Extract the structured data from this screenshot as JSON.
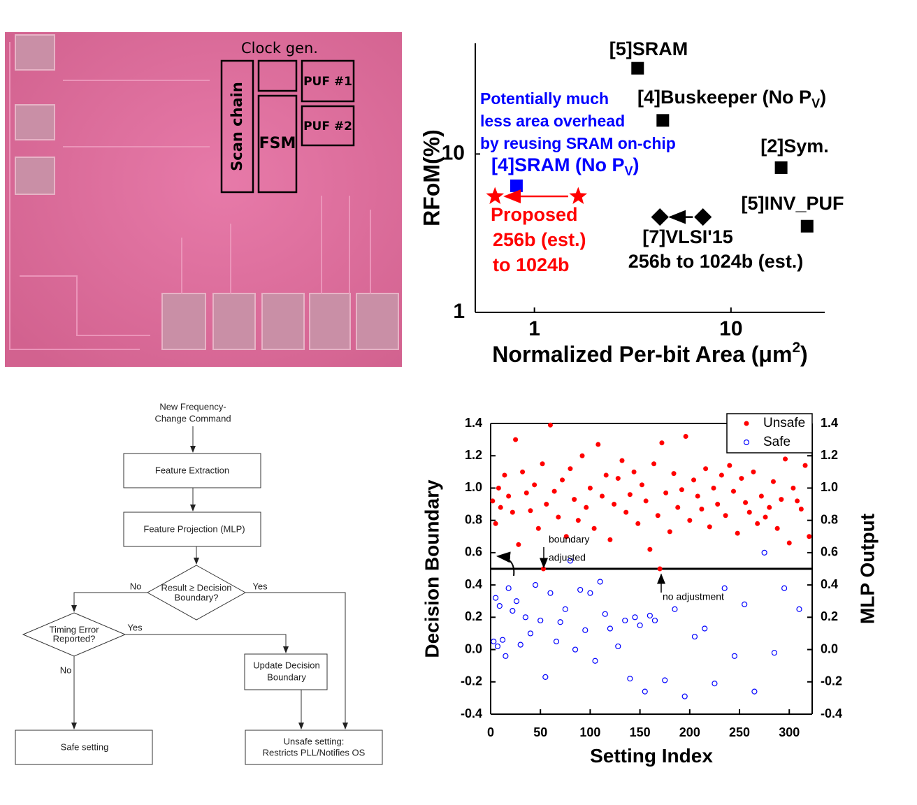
{
  "die_photo": {
    "labels": {
      "clock_gen": "Clock gen.",
      "scan_chain": "Scan chain",
      "fsm": "FSM",
      "puf_1": "PUF #1",
      "puf_2": "PUF #2"
    }
  },
  "chart_data": [
    {
      "type": "scatter",
      "xscale": "log",
      "yscale": "log",
      "x_label": "Normalized Per-bit Area  (μm",
      "x_label_sup": "2",
      "x_label_end": ")",
      "y_label": "RFoM(%)",
      "xlim": [
        0.5,
        30
      ],
      "ylim": [
        1,
        50
      ],
      "xticks": [
        1,
        10
      ],
      "yticks": [
        1,
        10
      ],
      "series": [
        {
          "name": "[5]SRAM",
          "color": "#000000",
          "marker": "square",
          "x": [
            3.35
          ],
          "values": [
            34.8
          ]
        },
        {
          "name": "[4]Buskeeper (No P",
          "name_sub": "V",
          "name_end": ")",
          "color": "#000000",
          "marker": "square",
          "x": [
            4.5
          ],
          "values": [
            16.3
          ]
        },
        {
          "name": "[2]Sym.",
          "color": "#000000",
          "marker": "square",
          "x": [
            18
          ],
          "values": [
            8.2
          ]
        },
        {
          "name": "[5]INV_PUF",
          "color": "#000000",
          "marker": "square",
          "x": [
            24.4
          ],
          "values": [
            3.5
          ]
        },
        {
          "name": "[4]SRAM (No P",
          "name_sub": "V",
          "name_end": ")",
          "color": "#0000ff",
          "marker": "square",
          "x": [
            0.81
          ],
          "values": [
            6.3
          ]
        },
        {
          "name": "Proposed",
          "name_lines": [
            "256b (est.)",
            "to 1024b"
          ],
          "color": "#ff0000",
          "marker": "star",
          "x": [
            0.63,
            1.67
          ],
          "values": [
            5.4,
            5.4
          ]
        },
        {
          "name": "[7]VLSI'15",
          "name_lines": [
            "256b to 1024b (est.)"
          ],
          "color": "#000000",
          "marker": "diamond",
          "x": [
            4.35,
            7.2
          ],
          "values": [
            4.0,
            4.0
          ]
        }
      ],
      "annotation_lines": [
        "Potentially much",
        "less area overhead",
        "by reusing SRAM on-chip"
      ],
      "annotation_color": "#0000ff"
    },
    {
      "type": "scatter",
      "x_label": "Setting Index",
      "y_label": "Decision Boundary",
      "y2_label": "MLP Output",
      "xlim": [
        0,
        323
      ],
      "ylim": [
        -0.4,
        1.4
      ],
      "y2lim": [
        -0.4,
        1.4
      ],
      "xticks": [
        0,
        50,
        100,
        150,
        200,
        250,
        300
      ],
      "yticks": [
        1.4,
        1.2,
        {
          "value": 1,
          "label": "1.0"
        },
        0.8,
        0.6,
        0.4,
        0.2,
        {
          "value": 0,
          "label": "0.0"
        },
        -0.2,
        -0.4
      ],
      "y2ticks": [
        1.4,
        1.2,
        {
          "value": 1,
          "label": "1.0"
        },
        0.8,
        0.6,
        0.4,
        0.2,
        {
          "value": 0,
          "label": "0.0"
        },
        -0.2,
        -0.4
      ],
      "legend": "upper right",
      "threshold": 0.5,
      "annotations": [
        "boundary",
        "adjusted",
        "no adjustment"
      ],
      "series": [
        {
          "name": "Unsafe",
          "color": "#ff0000",
          "marker": "circle",
          "x": [
            2,
            5,
            8,
            10,
            14,
            18,
            22,
            25,
            28,
            32,
            36,
            40,
            44,
            48,
            52,
            56,
            60,
            64,
            68,
            72,
            76,
            80,
            84,
            88,
            92,
            96,
            100,
            104,
            108,
            112,
            116,
            120,
            124,
            128,
            132,
            136,
            140,
            144,
            148,
            152,
            156,
            160,
            164,
            168,
            172,
            176,
            180,
            184,
            188,
            192,
            196,
            200,
            204,
            208,
            212,
            216,
            220,
            224,
            228,
            232,
            236,
            240,
            244,
            248,
            252,
            256,
            260,
            264,
            268,
            272,
            276,
            280,
            284,
            288,
            292,
            296,
            300,
            304,
            308,
            312,
            316,
            320,
            53,
            170
          ],
          "values": [
            0.92,
            0.78,
            1.0,
            0.88,
            1.08,
            0.95,
            0.85,
            1.3,
            0.65,
            1.1,
            0.97,
            0.86,
            1.02,
            0.75,
            1.15,
            0.9,
            1.39,
            0.98,
            0.82,
            1.05,
            0.7,
            1.12,
            0.93,
            0.8,
            1.2,
            0.88,
            1.0,
            0.75,
            1.27,
            0.95,
            1.08,
            0.68,
            0.9,
            1.06,
            1.17,
            0.85,
            0.96,
            1.1,
            0.78,
            1.02,
            0.92,
            0.62,
            1.15,
            0.83,
            1.28,
            0.97,
            0.73,
            1.09,
            0.88,
            0.99,
            1.32,
            0.8,
            1.05,
            0.95,
            0.87,
            1.12,
            0.76,
            1.0,
            0.9,
            1.08,
            0.83,
            1.14,
            0.98,
            0.72,
            1.06,
            0.91,
            0.85,
            1.1,
            0.78,
            0.95,
            0.82,
            0.88,
            1.04,
            0.75,
            0.93,
            1.18,
            0.66,
            1.0,
            0.92,
            0.87,
            1.14,
            0.7,
            0.5,
            0.5
          ]
        },
        {
          "name": "Safe",
          "color": "#0000ff",
          "marker": "open-circle",
          "x": [
            3,
            5,
            7,
            9,
            12,
            15,
            18,
            22,
            26,
            30,
            35,
            40,
            45,
            50,
            55,
            60,
            66,
            70,
            75,
            80,
            85,
            90,
            95,
            100,
            105,
            110,
            115,
            120,
            128,
            135,
            140,
            145,
            150,
            155,
            160,
            165,
            175,
            185,
            195,
            205,
            215,
            225,
            235,
            245,
            255,
            265,
            275,
            285,
            295,
            310
          ],
          "values": [
            0.05,
            0.32,
            0.02,
            0.27,
            0.06,
            -0.04,
            0.38,
            0.24,
            0.3,
            0.03,
            0.2,
            0.1,
            0.4,
            0.18,
            -0.17,
            0.35,
            0.05,
            0.17,
            0.25,
            0.55,
            0.0,
            0.37,
            0.12,
            0.35,
            -0.07,
            0.42,
            0.22,
            0.13,
            0.02,
            0.18,
            -0.18,
            0.2,
            0.15,
            -0.26,
            0.21,
            0.18,
            -0.19,
            0.25,
            -0.29,
            0.08,
            0.13,
            -0.21,
            0.38,
            -0.04,
            0.28,
            -0.26,
            0.6,
            -0.02,
            0.38,
            0.25
          ]
        }
      ]
    }
  ],
  "flowchart": {
    "start_lines": [
      "New Frequency-",
      "Change Command"
    ],
    "feature_extraction": "Feature Extraction",
    "feature_projection": "Feature Projection (MLP)",
    "decision_1_lines": [
      "Result ≥ Decision",
      "Boundary?"
    ],
    "decision_2_lines": [
      "Timing Error",
      "Reported?"
    ],
    "update_lines": [
      "Update Decision",
      "Boundary"
    ],
    "safe": "Safe setting",
    "unsafe_lines": [
      "Unsafe setting:",
      "Restricts PLL/Notifies OS"
    ],
    "edge_labels": {
      "d1_no": "No",
      "d1_yes": "Yes",
      "d2_yes": "Yes",
      "d2_no": "No"
    }
  }
}
